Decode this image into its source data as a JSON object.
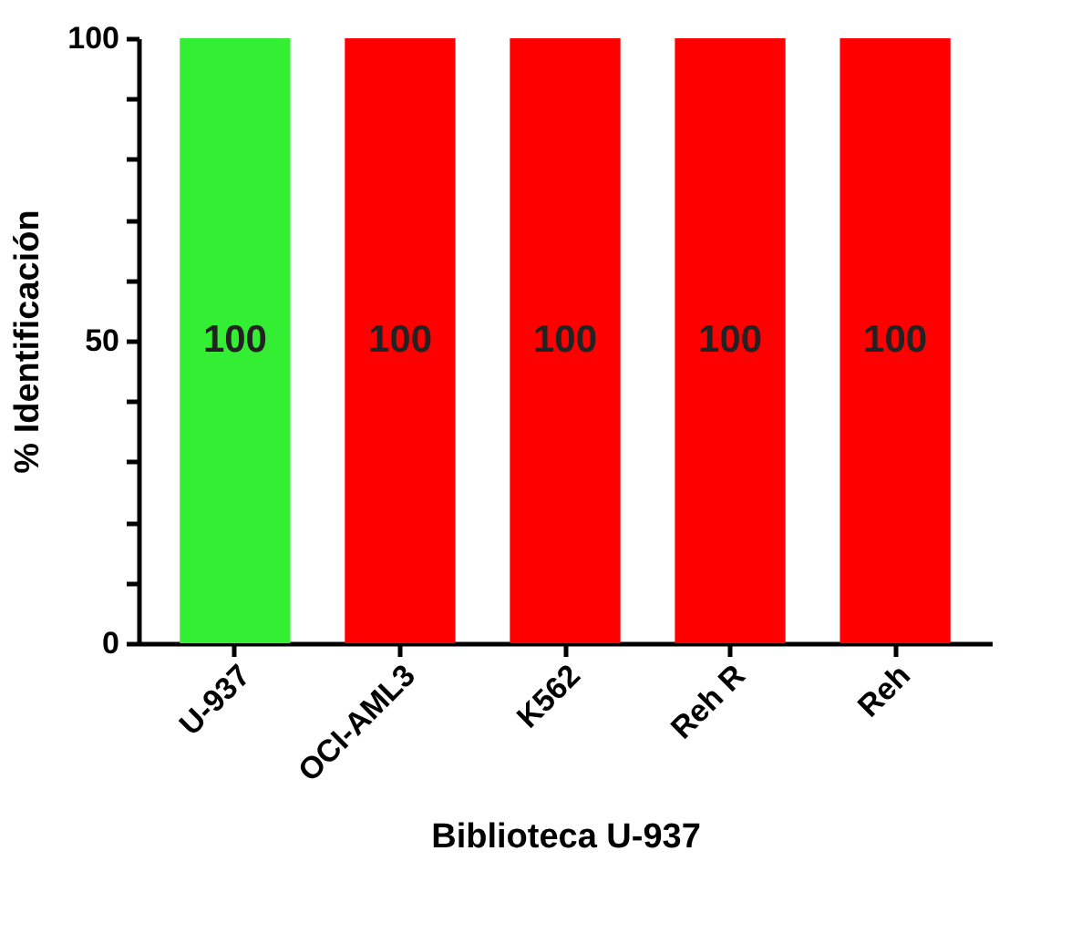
{
  "chart_data": {
    "type": "bar",
    "categories": [
      "U-937",
      "OCI-AML3",
      "K562",
      "Reh R",
      "Reh"
    ],
    "values": [
      100,
      100,
      100,
      100,
      100
    ],
    "colors": [
      "#33ee33",
      "#ff0000",
      "#ff0000",
      "#ff0000",
      "#ff0000"
    ],
    "xlabel": "Biblioteca U-937",
    "ylabel": "% Identificación",
    "ylim": [
      0,
      100
    ],
    "yticks": [
      0,
      {
        "value": 10,
        "label": null
      },
      {
        "value": 20,
        "label": null
      },
      {
        "value": 30,
        "label": null
      },
      {
        "value": 40,
        "label": null
      },
      50,
      {
        "value": 60,
        "label": null
      },
      {
        "value": 70,
        "label": null
      },
      {
        "value": 80,
        "label": null
      },
      {
        "value": 90,
        "label": null
      },
      100
    ],
    "data_labels": true,
    "grid": false,
    "legend": false
  }
}
